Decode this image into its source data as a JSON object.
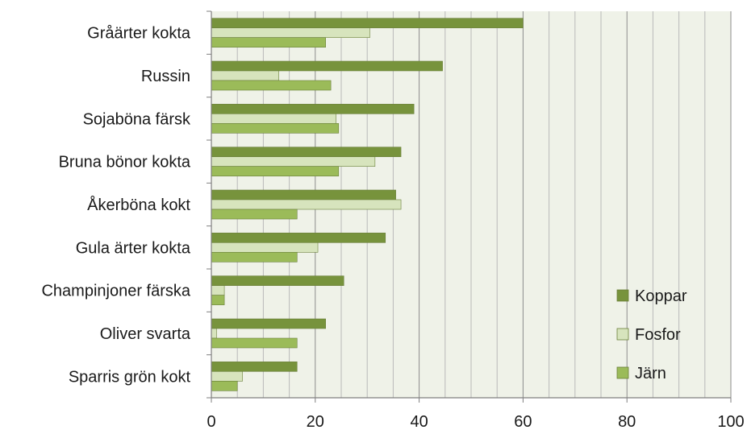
{
  "chart_data": {
    "type": "bar",
    "orientation": "horizontal",
    "categories": [
      "Gråärter kokta",
      "Russin",
      "Sojaböna färsk",
      "Bruna bönor kokta",
      "Åkerböna kokt",
      "Gula ärter kokta",
      "Champinjoner färska",
      "Oliver svarta",
      "Sparris grön kokt"
    ],
    "series": [
      {
        "name": "Koppar",
        "color": "#77933c",
        "values": [
          60,
          44.5,
          39,
          36.5,
          35.5,
          33.5,
          25.5,
          22,
          16.5
        ]
      },
      {
        "name": "Fosfor",
        "color": "#d7e4bd",
        "values": [
          30.5,
          13,
          24,
          31.5,
          36.5,
          20.5,
          2.5,
          1,
          6
        ]
      },
      {
        "name": "Järn",
        "color": "#9bbb59",
        "values": [
          22,
          23,
          24.5,
          24.5,
          16.5,
          16.5,
          2.5,
          16.5,
          5
        ]
      }
    ],
    "xlim": [
      0,
      100
    ],
    "x_ticks": [
      "0",
      "20",
      "40",
      "60",
      "80",
      "100"
    ],
    "grid": true,
    "legend_position": "bottom-right",
    "plot_background": "#eff2e8"
  }
}
